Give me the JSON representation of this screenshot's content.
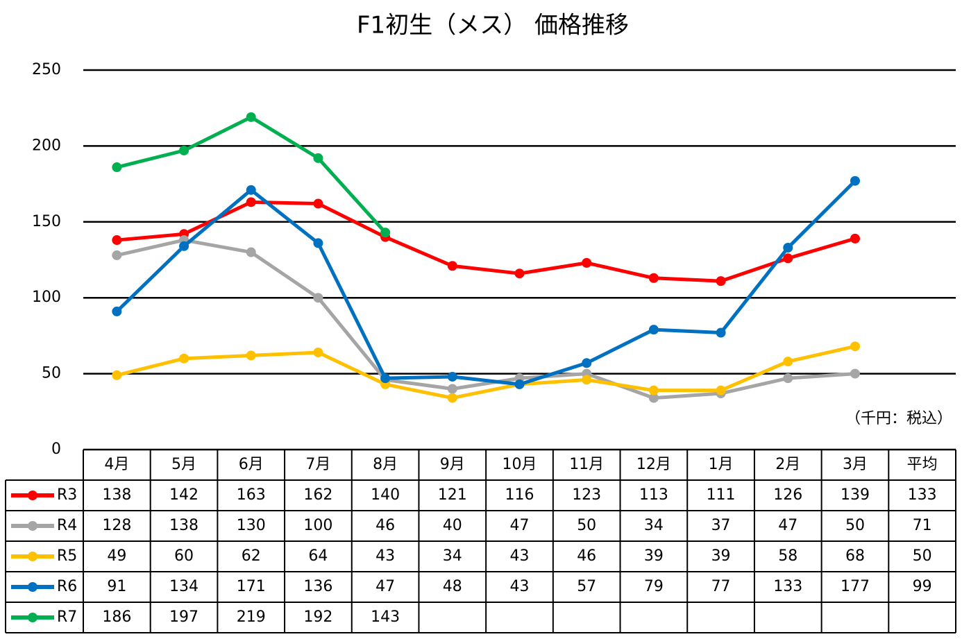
{
  "chart_data": {
    "type": "line",
    "title": "F1初生（メス） 価格推移",
    "unit_note": "（千円：税込）",
    "categories": [
      "4月",
      "5月",
      "6月",
      "7月",
      "8月",
      "9月",
      "10月",
      "11月",
      "12月",
      "1月",
      "2月",
      "3月"
    ],
    "average_label": "平均",
    "series": [
      {
        "name": "R3",
        "color": "#ff0000",
        "values": [
          138,
          142,
          163,
          162,
          140,
          121,
          116,
          123,
          113,
          111,
          126,
          139
        ],
        "average": 133
      },
      {
        "name": "R4",
        "color": "#a5a5a5",
        "values": [
          128,
          138,
          130,
          100,
          46,
          40,
          47,
          50,
          34,
          37,
          47,
          50
        ],
        "average": 71
      },
      {
        "name": "R5",
        "color": "#ffc000",
        "values": [
          49,
          60,
          62,
          64,
          43,
          34,
          43,
          46,
          39,
          39,
          58,
          68
        ],
        "average": 50
      },
      {
        "name": "R6",
        "color": "#0070c0",
        "values": [
          91,
          134,
          171,
          136,
          47,
          48,
          43,
          57,
          79,
          77,
          133,
          177
        ],
        "average": 99
      },
      {
        "name": "R7",
        "color": "#00b050",
        "values": [
          186,
          197,
          219,
          192,
          143,
          null,
          null,
          null,
          null,
          null,
          null,
          null
        ]
      }
    ],
    "ylim": [
      0,
      250
    ],
    "yticks": [
      0,
      50,
      100,
      150,
      200,
      250
    ],
    "grid": true
  }
}
